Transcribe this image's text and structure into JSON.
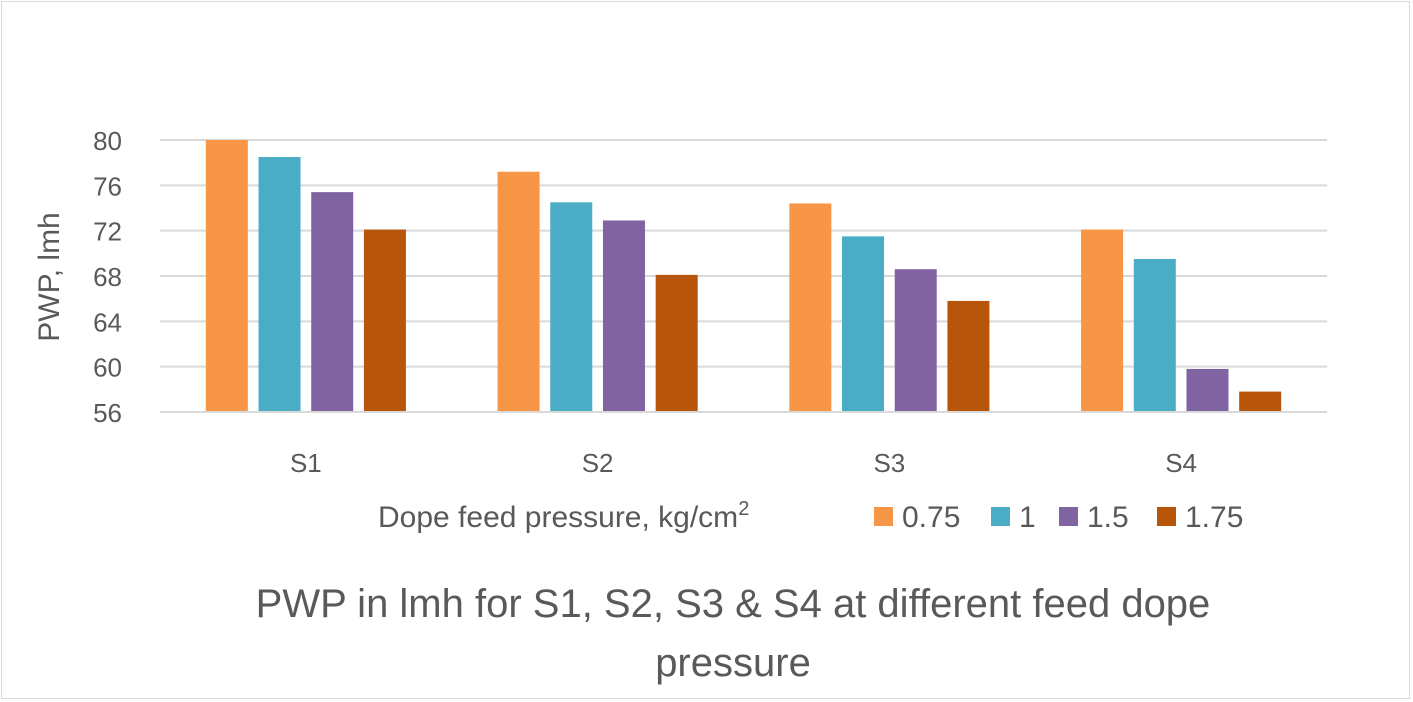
{
  "chart_data": {
    "type": "bar",
    "title": "PWP in lmh for S1, S2, S3 & S4 at different feed dope pressure",
    "title_lines": [
      "PWP in lmh for S1, S2, S3 & S4 at different feed dope",
      "pressure"
    ],
    "ylabel": "PWP, lmh",
    "legend_title": "Dope feed pressure, kg/cm",
    "legend_title_sup": "2",
    "categories": [
      "S1",
      "S2",
      "S3",
      "S4"
    ],
    "ylim": [
      56,
      80
    ],
    "yticks": [
      "56",
      "60",
      "64",
      "68",
      "72",
      "76",
      "80"
    ],
    "grid": true,
    "legend_position": "bottom",
    "series": [
      {
        "name": "0.75",
        "color": "#F79646",
        "values": [
          80,
          77.2,
          74.4,
          72.1
        ]
      },
      {
        "name": "1",
        "color": "#4BACC6",
        "values": [
          78.5,
          74.5,
          71.5,
          69.5
        ]
      },
      {
        "name": "1.5",
        "color": "#8064A2",
        "values": [
          75.4,
          72.9,
          68.6,
          59.8
        ]
      },
      {
        "name": "1.75",
        "color": "#B7560A",
        "values": [
          72.1,
          68.1,
          65.8,
          57.8
        ]
      }
    ]
  }
}
